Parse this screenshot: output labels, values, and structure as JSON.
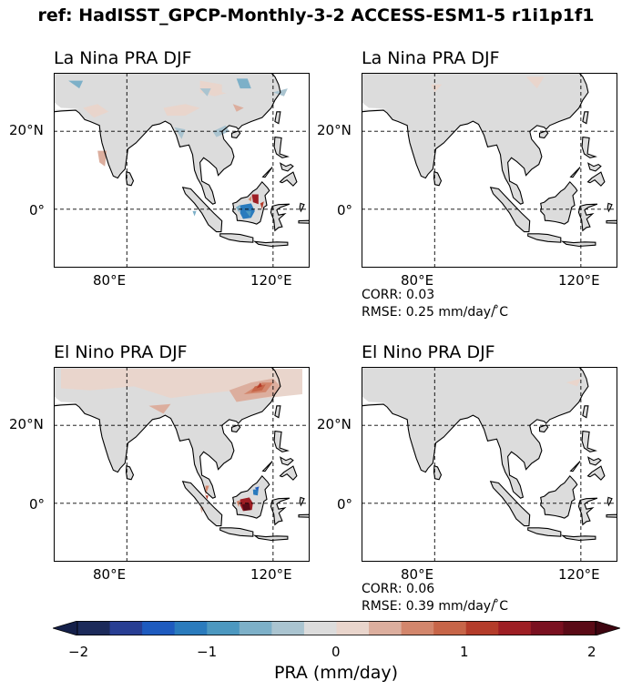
{
  "figure": {
    "suptitle": "ref: HadISST_GPCP-Monthly-3-2 ACCESS-ESM1-5 r1i1p1f1"
  },
  "panels": [
    {
      "title": "La Nina PRA DJF",
      "x_ticks": [
        "80°E",
        "120°E"
      ],
      "y_ticks": [
        "20°N",
        "0°"
      ],
      "corr": "",
      "rmse": ""
    },
    {
      "title": "La Nina PRA DJF",
      "x_ticks": [
        "80°E",
        "120°E"
      ],
      "y_ticks": [
        "20°N",
        "0°"
      ],
      "corr": "CORR: 0.03",
      "rmse": "RMSE: 0.25 mm/day/ ̊C"
    },
    {
      "title": "El Nino PRA DJF",
      "x_ticks": [
        "80°E",
        "120°E"
      ],
      "y_ticks": [
        "20°N",
        "0°"
      ],
      "corr": "",
      "rmse": ""
    },
    {
      "title": "El Nino PRA DJF",
      "x_ticks": [
        "80°E",
        "120°E"
      ],
      "y_ticks": [
        "20°N",
        "0°"
      ],
      "corr": "CORR: 0.06",
      "rmse": "RMSE: 0.39 mm/day/ ̊C"
    }
  ],
  "colorbar": {
    "label": "PRA (mm/day)",
    "tick_labels": [
      "−2",
      "−1",
      "0",
      "1",
      "2"
    ],
    "range": [
      -2,
      2
    ],
    "colors": [
      "#1c2a5a",
      "#283e93",
      "#1e5bbf",
      "#2a7bbd",
      "#4c98c0",
      "#7db0c8",
      "#aac4d0",
      "#dcdcdc",
      "#e9d5cc",
      "#dcae9e",
      "#d3866c",
      "#c76548",
      "#b43c2a",
      "#9e1e24",
      "#7a1020",
      "#5a0a16"
    ],
    "under_color": "#15204a",
    "over_color": "#3e0510"
  },
  "map": {
    "lon_range": [
      60,
      130
    ],
    "lat_range": [
      -15,
      35
    ],
    "gridlines": {
      "lon": [
        80,
        120
      ],
      "lat": [
        20,
        0
      ]
    },
    "land_fill": "#dcdcdc",
    "coast_color": "#000000"
  }
}
